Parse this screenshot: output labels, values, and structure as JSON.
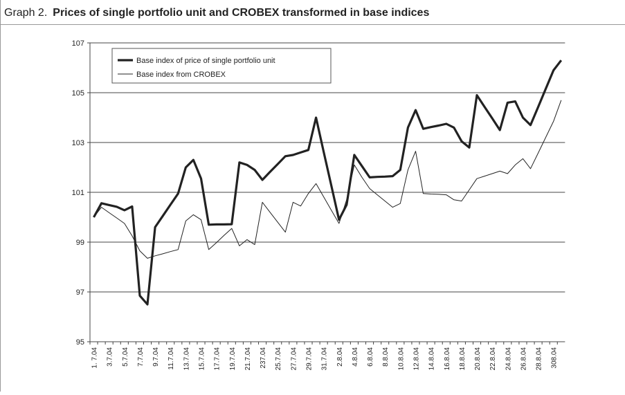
{
  "chart_data": {
    "type": "line",
    "label": "Graph 2.",
    "title": "Prices of single portfolio unit and CROBEX transformed in base indices",
    "categories": [
      "1. 7.04",
      null,
      "3.7.04",
      null,
      "5.7.04",
      null,
      "7.7.04",
      null,
      "9.7.04",
      null,
      "11.7.04",
      null,
      "13.7.04",
      null,
      "15.7.04",
      null,
      "17.7.04",
      null,
      "19.7.04",
      null,
      "21.7.04",
      null,
      "237.04",
      null,
      "25.7.04",
      null,
      "27.7.04",
      null,
      "29.7.04",
      null,
      "31.7.04",
      null,
      "2.8.04",
      null,
      "4.8.04",
      null,
      "6.8.04",
      null,
      "8.8.04",
      null,
      "10.8.04",
      null,
      "12.8.04",
      null,
      "14.8.04",
      null,
      "16.8.04",
      null,
      "18.8.04",
      null,
      "20.8.04",
      null,
      "22.8.04",
      null,
      "24.8.04",
      null,
      "26.8.04",
      null,
      "28.8.04",
      null,
      "308.04",
      null
    ],
    "series": [
      {
        "name": "Base index of price of single portfolio unit",
        "color": "#222222",
        "width": 3.2,
        "values": [
          100.0,
          100.56,
          100.49,
          100.42,
          100.28,
          100.43,
          96.85,
          96.5,
          99.6,
          100.05,
          100.5,
          100.95,
          102.0,
          102.3,
          101.55,
          99.7,
          99.71,
          99.71,
          99.72,
          102.2,
          102.1,
          101.9,
          101.5,
          101.82,
          102.13,
          102.45,
          102.5,
          102.6,
          102.7,
          104.0,
          102.63,
          101.27,
          99.9,
          100.5,
          102.5,
          102.05,
          101.6,
          101.62,
          101.63,
          101.65,
          101.9,
          103.6,
          104.3,
          103.55,
          103.62,
          103.68,
          103.75,
          103.6,
          103.05,
          102.8,
          104.9,
          104.43,
          103.97,
          103.5,
          104.6,
          104.65,
          104.0,
          103.7,
          104.43,
          105.17,
          105.9,
          106.3
        ]
      },
      {
        "name": "Base index from CROBEX",
        "color": "#222222",
        "width": 1,
        "values": [
          100.0,
          100.4,
          100.18,
          99.97,
          99.75,
          99.25,
          98.65,
          98.35,
          98.45,
          98.53,
          98.62,
          98.7,
          99.85,
          100.1,
          99.9,
          98.7,
          98.98,
          99.27,
          99.55,
          98.85,
          99.1,
          98.9,
          100.6,
          100.2,
          99.8,
          99.4,
          100.6,
          100.45,
          100.95,
          101.35,
          100.82,
          100.28,
          99.75,
          100.7,
          102.1,
          101.6,
          101.15,
          100.9,
          100.65,
          100.4,
          100.55,
          101.9,
          102.65,
          100.95,
          100.93,
          100.92,
          100.9,
          100.7,
          100.65,
          101.1,
          101.55,
          101.65,
          101.75,
          101.85,
          101.75,
          102.1,
          102.35,
          101.95,
          102.58,
          103.22,
          103.85,
          104.7
        ]
      }
    ],
    "ylim": [
      95,
      107
    ],
    "yticks": [
      95,
      97,
      99,
      101,
      103,
      105,
      107
    ],
    "grid": true
  }
}
